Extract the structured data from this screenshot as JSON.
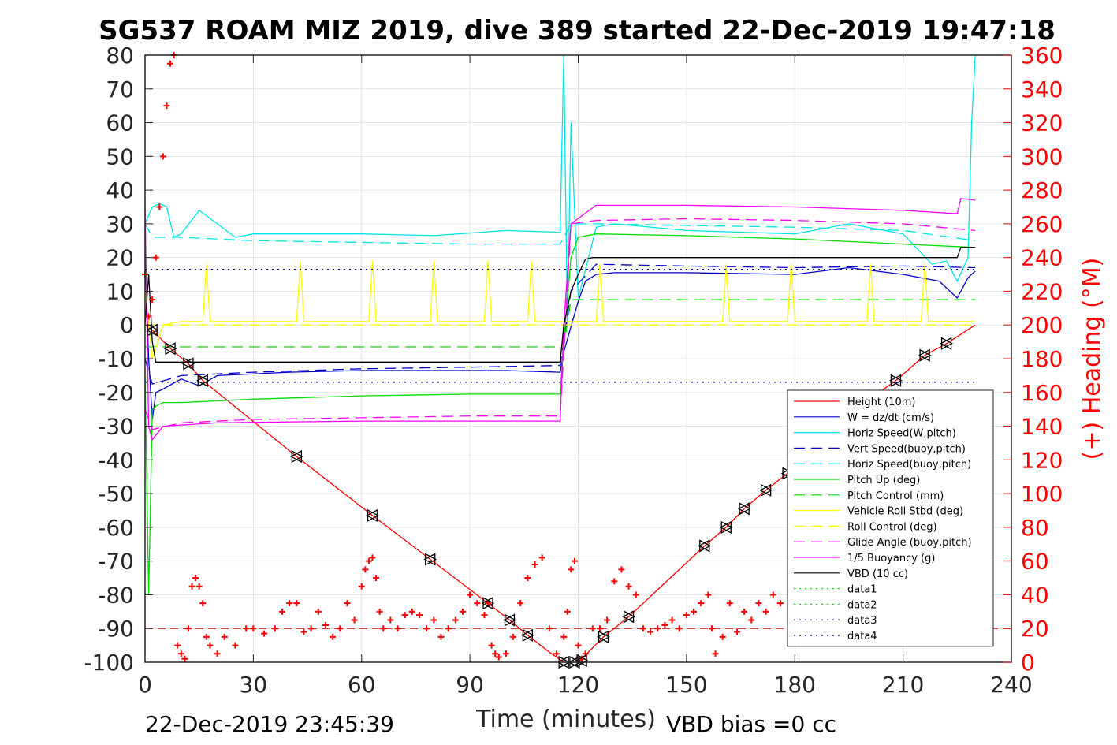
{
  "chart_data": {
    "type": "line",
    "title": "SG537 ROAM MIZ 2019, dive 389 started 22-Dec-2019 19:47:18",
    "xlabel": "Time (minutes)",
    "ylabel": "",
    "y2label": "(+) Heading (°M)",
    "xlim": [
      0,
      240
    ],
    "ylim": [
      -100,
      80
    ],
    "y2lim": [
      0,
      360
    ],
    "x_ticks": [
      "0",
      "30",
      "60",
      "90",
      "120",
      "150",
      "180",
      "210",
      "240"
    ],
    "y_ticks": [
      "80",
      "70",
      "60",
      "50",
      "40",
      "30",
      "20",
      "10",
      "0",
      "-10",
      "-20",
      "-30",
      "-40",
      "-50",
      "-60",
      "-70",
      "-80",
      "-90",
      "-100"
    ],
    "y2_ticks": [
      "360",
      "340",
      "320",
      "300",
      "280",
      "260",
      "240",
      "220",
      "200",
      "180",
      "160",
      "140",
      "120",
      "100",
      "80",
      "60",
      "40",
      "20",
      "0"
    ],
    "grid": true,
    "legend_position": "lower-right",
    "footer_left": "22-Dec-2019 23:45:39",
    "footer_right": "VBD bias =0 cc",
    "colors": {
      "height": "#ff0000",
      "w": "#0000cc",
      "horiz_speed": "#00e5e5",
      "pitch": "#00dd00",
      "roll": "#ffff00",
      "glide": "#ff00ff",
      "buoyancy": "#ff00ff",
      "vbd": "#000000",
      "heading": "#ff0000"
    },
    "series": [
      {
        "name": "Height (10m)",
        "color": "#ff0000",
        "dash": "solid",
        "x": [
          0,
          2,
          7,
          12,
          16,
          42,
          63,
          79,
          95,
          101,
          106,
          112,
          116,
          120,
          127,
          134,
          155,
          161,
          166,
          172,
          178,
          184,
          196,
          202,
          208,
          216,
          222,
          230
        ],
        "y": [
          0,
          -1.5,
          -7,
          -11.5,
          -16.5,
          -39,
          -56.5,
          -69.5,
          -82.5,
          -87.5,
          -92,
          -97,
          -100,
          -100,
          -92.5,
          -86.5,
          -65.5,
          -60,
          -54.5,
          -49,
          -44,
          -38,
          -27,
          -21,
          -16.5,
          -9,
          -5.5,
          0
        ]
      },
      {
        "name": "W = dz/dt (cm/s)",
        "color": "#0000cc",
        "dash": "solid",
        "x": [
          0,
          1,
          2,
          3,
          5,
          10,
          15,
          20,
          40,
          60,
          80,
          100,
          115,
          116,
          120,
          122,
          125,
          130,
          150,
          180,
          195,
          210,
          220,
          225,
          228,
          230
        ],
        "y": [
          20,
          -10,
          -28,
          -20,
          -19,
          -16,
          -18,
          -15,
          -14,
          -13.5,
          -13.5,
          -13.5,
          -14,
          -8,
          7,
          13,
          15,
          15.5,
          15.5,
          15,
          17,
          15,
          13,
          8,
          14,
          16
        ]
      },
      {
        "name": "Horiz Speed(W,pitch)",
        "color": "#00e5e5",
        "dash": "solid",
        "x": [
          0,
          2,
          4,
          6,
          8,
          10,
          15,
          20,
          25,
          30,
          40,
          60,
          80,
          100,
          115,
          116,
          117,
          118,
          120,
          125,
          130,
          150,
          180,
          195,
          210,
          218,
          222,
          225,
          228,
          229,
          230
        ],
        "y": [
          30,
          35,
          36,
          35,
          26,
          27,
          34,
          30,
          26,
          27,
          27,
          27,
          26.5,
          28,
          27.5,
          80,
          0,
          60,
          8,
          29,
          30,
          28,
          27,
          30,
          27,
          18,
          19,
          13,
          20,
          60,
          80
        ]
      },
      {
        "name": "Vert Speed(buoy,pitch)",
        "color": "#0000cc",
        "dash": "long",
        "x": [
          0,
          2,
          10,
          30,
          60,
          90,
          115,
          118,
          125,
          150,
          180,
          210,
          230
        ],
        "y": [
          -10,
          -17.5,
          -15,
          -14,
          -13,
          -12.5,
          -12,
          10,
          18,
          17.5,
          17,
          17.5,
          17
        ]
      },
      {
        "name": "Horiz Speed(buoy,pitch)",
        "color": "#00e5e5",
        "dash": "long",
        "x": [
          0,
          2,
          10,
          30,
          60,
          90,
          115,
          118,
          125,
          150,
          180,
          210,
          230
        ],
        "y": [
          30,
          26,
          26,
          25,
          24.5,
          24,
          24,
          30,
          30,
          29.5,
          29,
          28,
          25
        ]
      },
      {
        "name": "Pitch Up (deg)",
        "color": "#00dd00",
        "dash": "solid",
        "x": [
          0,
          1,
          2,
          3,
          5,
          10,
          30,
          60,
          90,
          115,
          116,
          118,
          120,
          125,
          150,
          180,
          210,
          230
        ],
        "y": [
          -15,
          -80,
          -25,
          -24,
          -23,
          -23,
          -22,
          -21,
          -20.5,
          -20.5,
          -5,
          20,
          26,
          27,
          26.5,
          25.5,
          24,
          23
        ]
      },
      {
        "name": "Pitch Control (mm)",
        "color": "#00dd00",
        "dash": "long",
        "x": [
          0,
          2,
          116,
          118,
          230
        ],
        "y": [
          -6.5,
          -6.5,
          -6.5,
          7.5,
          7.5
        ]
      },
      {
        "name": "Vehicle Roll Stbd (deg)",
        "color": "#ffff00",
        "dash": "solid",
        "x": [
          0,
          2,
          5,
          10,
          16,
          17,
          18,
          25,
          42,
          43,
          44,
          62,
          63,
          64,
          79,
          80,
          81,
          94,
          95,
          96,
          106,
          107,
          108,
          115,
          120,
          125,
          126,
          127,
          160,
          161,
          162,
          178,
          179,
          180,
          200,
          201,
          202,
          215,
          216,
          217,
          230
        ],
        "y": [
          10,
          -10,
          0,
          1,
          1,
          18,
          1,
          1,
          1,
          19,
          1,
          1,
          19,
          1,
          1,
          19,
          1,
          1,
          19,
          1,
          1,
          19,
          1,
          1,
          1,
          1,
          18,
          1,
          1,
          18,
          1,
          1,
          18,
          1,
          1,
          18,
          1,
          1,
          18,
          1,
          1
        ]
      },
      {
        "name": "Roll Control (deg)",
        "color": "#ffff00",
        "dash": "long",
        "x": [
          0,
          230
        ],
        "y": [
          0,
          0
        ]
      },
      {
        "name": "Glide Angle (buoy,pitch)",
        "color": "#ff00ff",
        "dash": "long",
        "x": [
          0,
          2,
          10,
          30,
          60,
          90,
          115,
          118,
          125,
          150,
          180,
          210,
          230
        ],
        "y": [
          -25,
          -31,
          -29,
          -28,
          -27.5,
          -27,
          -27,
          30,
          31,
          31.5,
          31,
          30,
          28
        ]
      },
      {
        "name": "1/5 Buoyancy (g)",
        "color": "#ff00ff",
        "dash": "solid",
        "x": [
          0,
          1,
          2,
          5,
          20,
          60,
          115,
          116,
          118,
          125,
          150,
          180,
          210,
          225,
          226,
          230
        ],
        "y": [
          35,
          -30,
          -34,
          -30,
          -29,
          -28.5,
          -28.5,
          0,
          30,
          35.5,
          35.5,
          35,
          34,
          33,
          37.5,
          37
        ]
      },
      {
        "name": "VBD (10 cc)",
        "color": "#000000",
        "dash": "solid",
        "x": [
          0,
          1,
          2,
          3,
          115,
          116,
          118,
          120,
          122,
          124,
          130,
          180,
          225,
          226,
          230
        ],
        "y": [
          0,
          15,
          -5,
          -11,
          -11,
          0,
          10,
          15,
          19.5,
          20,
          20,
          20,
          20,
          23,
          23
        ]
      },
      {
        "name": "data1",
        "color": "#00dd00",
        "dash": "dot",
        "x": [],
        "y": []
      },
      {
        "name": "data2",
        "color": "#00dd00",
        "dash": "dot",
        "x": [],
        "y": []
      },
      {
        "name": "data3",
        "color": "#000099",
        "dash": "dot",
        "x": [
          0,
          230
        ],
        "y": [
          16.5,
          16.5
        ]
      },
      {
        "name": "data4",
        "color": "#000099",
        "dash": "dot",
        "x": [
          0,
          230
        ],
        "y": [
          -17,
          -17
        ]
      }
    ],
    "heading_reference": {
      "color": "#cc0000",
      "value": 20
    },
    "markers": {
      "triangles_x": [
        2,
        7,
        12,
        16,
        42,
        63,
        79,
        95,
        101,
        106,
        116,
        119,
        121,
        127,
        134,
        155,
        161,
        166,
        172,
        178,
        202,
        208,
        216,
        222
      ],
      "triangles_y": [
        -1.5,
        -7,
        -11.5,
        -16.5,
        -39,
        -56.5,
        -69.5,
        -82.5,
        -87.5,
        -92,
        -100,
        -100,
        -99.5,
        -92.5,
        -86.5,
        -65.5,
        -60,
        -54.5,
        -49,
        -44,
        -21,
        -16.5,
        -9,
        -5.5
      ]
    },
    "heading": {
      "color": "#ff0000",
      "x": [
        0,
        1,
        2,
        3,
        4,
        5,
        6,
        7,
        8,
        9,
        10,
        11,
        12,
        13,
        14,
        15,
        16,
        17,
        18,
        20,
        22,
        25,
        28,
        30,
        33,
        36,
        38,
        40,
        42,
        44,
        46,
        48,
        50,
        52,
        54,
        56,
        58,
        60,
        61,
        62,
        63,
        64,
        65,
        66,
        68,
        70,
        72,
        74,
        76,
        78,
        80,
        82,
        84,
        86,
        88,
        90,
        92,
        94,
        95,
        96,
        97,
        98,
        100,
        102,
        104,
        106,
        108,
        110,
        112,
        114,
        116,
        117,
        118,
        119,
        120,
        121,
        122,
        124,
        126,
        128,
        130,
        132,
        134,
        136,
        138,
        140,
        142,
        144,
        146,
        148,
        150,
        152,
        154,
        156,
        157,
        158,
        160,
        162,
        164,
        166,
        168,
        170,
        172,
        174,
        176
      ],
      "y": [
        230,
        205,
        215,
        240,
        270,
        300,
        330,
        355,
        360,
        10,
        5,
        2,
        20,
        45,
        50,
        45,
        35,
        15,
        10,
        5,
        15,
        10,
        20,
        20,
        17,
        20,
        30,
        35,
        35,
        18,
        20,
        30,
        22,
        15,
        20,
        35,
        25,
        45,
        55,
        60,
        62,
        50,
        30,
        20,
        25,
        20,
        28,
        30,
        28,
        20,
        25,
        15,
        20,
        25,
        30,
        40,
        35,
        28,
        35,
        10,
        5,
        3,
        5,
        15,
        35,
        50,
        58,
        62,
        20,
        5,
        15,
        30,
        55,
        60,
        10,
        2,
        5,
        20,
        20,
        25,
        48,
        55,
        45,
        40,
        20,
        18,
        20,
        22,
        25,
        20,
        28,
        30,
        35,
        40,
        20,
        5,
        15,
        35,
        18,
        30,
        25,
        35,
        30,
        40,
        35
      ]
    }
  }
}
